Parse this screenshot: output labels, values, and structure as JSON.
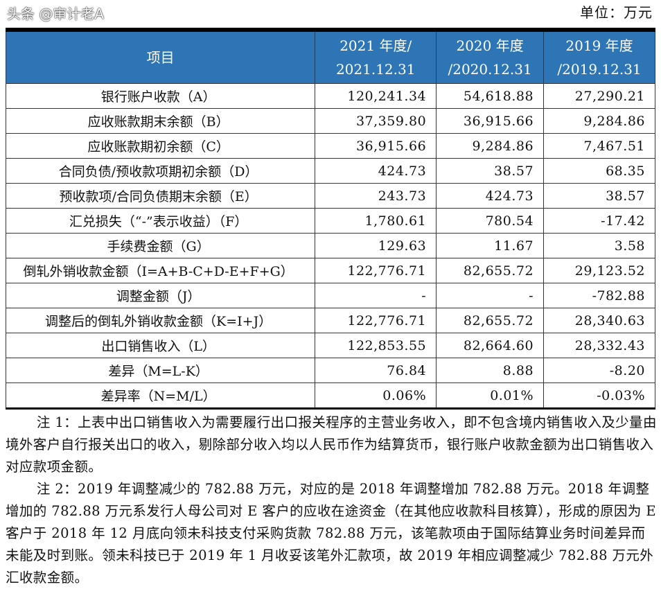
{
  "unit": "单位：万元",
  "table": {
    "headers": [
      {
        "line1": "项目",
        "line2": ""
      },
      {
        "line1": "2021 年度/",
        "line2": "2021.12.31"
      },
      {
        "line1": "2020 年度",
        "line2": "/2020.12.31"
      },
      {
        "line1": "2019 年度",
        "line2": "/2019.12.31"
      }
    ],
    "rows": [
      {
        "label": "银行账户收款（A）",
        "v2021": "120,241.34",
        "v2020": "54,618.88",
        "v2019": "27,290.21"
      },
      {
        "label": "应收账款期末余额（B）",
        "v2021": "37,359.80",
        "v2020": "36,915.66",
        "v2019": "9,284.86"
      },
      {
        "label": "应收账款期初余额（C）",
        "v2021": "36,915.66",
        "v2020": "9,284.86",
        "v2019": "7,467.51"
      },
      {
        "label": "合同负债/预收款项期初余额（D）",
        "v2021": "424.73",
        "v2020": "38.57",
        "v2019": "68.35"
      },
      {
        "label": "预收款项/合同负债期末余额（E）",
        "v2021": "243.73",
        "v2020": "424.73",
        "v2019": "38.57"
      },
      {
        "label": "汇兑损失（“-”表示收益）（F）",
        "v2021": "1,780.61",
        "v2020": "780.54",
        "v2019": "-17.42"
      },
      {
        "label": "手续费金额（G）",
        "v2021": "129.63",
        "v2020": "11.67",
        "v2019": "3.58"
      },
      {
        "label": "倒轧外销收款金额（I=A+B-C+D-E+F+G）",
        "v2021": "122,776.71",
        "v2020": "82,655.72",
        "v2019": "29,123.52"
      },
      {
        "label": "调整金额（J）",
        "v2021": "-",
        "v2020": "-",
        "v2019": "-782.88"
      },
      {
        "label": "调整后的倒轧外销收款金额（K=I+J）",
        "v2021": "122,776.71",
        "v2020": "82,655.72",
        "v2019": "28,340.63"
      },
      {
        "label": "出口销售收入（L）",
        "v2021": "122,853.55",
        "v2020": "82,664.60",
        "v2019": "28,332.43"
      },
      {
        "label": "差异（M=L-K）",
        "v2021": "76.84",
        "v2020": "8.88",
        "v2019": "-8.20"
      },
      {
        "label": "差异率（N=M/L）",
        "v2021": "0.06%",
        "v2020": "0.01%",
        "v2019": "-0.03%"
      }
    ]
  },
  "notes": [
    "注 1：上表中出口销售收入为需要履行出口报关程序的主营业务收入，即不包含境内销售收入及少量由境外客户自行报关出口的收入，剔除部分收入均以人民币作为结算货币，银行账户收款金额为出口销售收入对应款项金额。",
    "注 2：2019 年调整减少的 782.88 万元，对应的是 2018 年调整增加 782.88 万元。2018 年调整增加的 782.88 万元系发行人母公司对 E 客户的应收在途资金（在其他应收款科目核算），形成的原因为 E 客户于 2018 年 12 月底向领未科技支付采购货款 782.88 万元，该笔款项由于国际结算业务时间差异而未能及时到账。领未科技已于 2019 年 1 月收妥该笔外汇款项，故 2019 年相应调整减少 782.88 万元外汇收款金额。"
  ],
  "watermark": "头条 @审计老A"
}
